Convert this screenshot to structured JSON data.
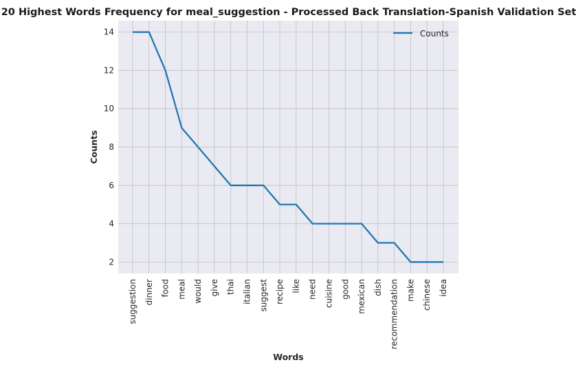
{
  "chart_data": {
    "type": "line",
    "title": "20 Highest Words Frequency for meal_suggestion - Processed Back Translation-Spanish Validation Set",
    "xlabel": "Words",
    "ylabel": "Counts",
    "categories": [
      "suggestion",
      "dinner",
      "food",
      "meal",
      "would",
      "give",
      "thai",
      "italian",
      "suggest",
      "recipe",
      "like",
      "need",
      "cuisine",
      "good",
      "mexican",
      "dish",
      "recommendation",
      "make",
      "chinese",
      "idea"
    ],
    "series": [
      {
        "name": "Counts",
        "values": [
          14,
          14,
          12,
          9,
          8,
          7,
          6,
          6,
          6,
          5,
          5,
          4,
          4,
          4,
          4,
          3,
          3,
          2,
          2,
          2
        ],
        "color": "#1f77b4"
      }
    ],
    "ylim": [
      1.4,
      14.6
    ],
    "yticks": [
      2,
      4,
      6,
      8,
      10,
      12,
      14
    ],
    "grid": true,
    "legend": "top-right",
    "background": "#eaeaf2"
  }
}
